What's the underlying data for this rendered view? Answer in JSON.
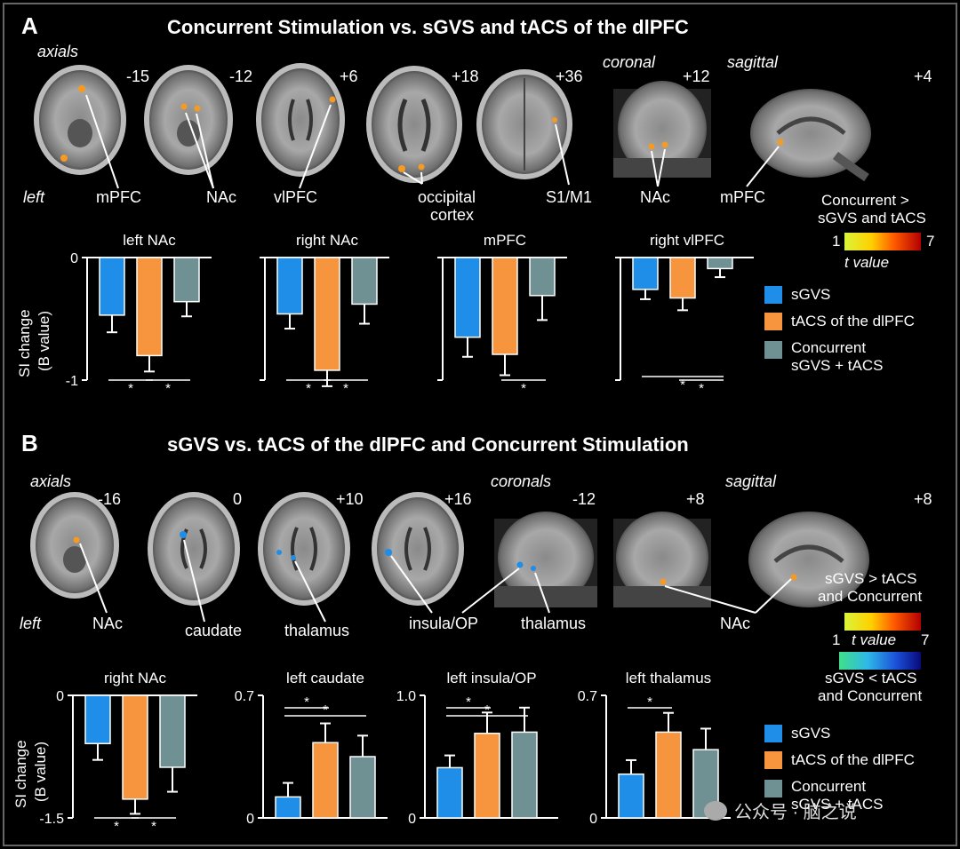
{
  "panel_a": {
    "letter": "A",
    "title": "Concurrent Stimulation vs. sGVS and tACS of the dlPFC",
    "view_labels": {
      "axials": "axials",
      "coronal": "coronal",
      "sagittal": "sagittal",
      "left": "left"
    },
    "slice_numbers": [
      "-15",
      "-12",
      "+6",
      "+18",
      "+36",
      "+12",
      "+4"
    ],
    "regions": {
      "mpfc_1": "mPFC",
      "nac_1": "NAc",
      "vlpfc": "vlPFC",
      "occipital": "occipital",
      "cortex": "cortex",
      "s1m1": "S1/M1",
      "nac_2": "NAc",
      "mpfc_2": "mPFC"
    },
    "colorbar": {
      "title_1": "Concurrent >",
      "title_2": "sGVS and tACS",
      "min": "1",
      "max": "7",
      "label": "t value"
    }
  },
  "panel_b": {
    "letter": "B",
    "title": "sGVS vs. tACS of the dlPFC and Concurrent Stimulation",
    "view_labels": {
      "axials": "axials",
      "coronals": "coronals",
      "sagittal": "sagittal",
      "left": "left"
    },
    "slice_numbers": [
      "-16",
      "0",
      "+10",
      "+16",
      "-12",
      "+8",
      "+8"
    ],
    "regions": {
      "nac_1": "NAc",
      "caudate": "caudate",
      "thalamus_1": "thalamus",
      "insula": "insula/OP",
      "thalamus_2": "thalamus",
      "nac_2": "NAc"
    },
    "colorbar": {
      "pos_1": "sGVS > tACS",
      "pos_2": "and Concurrent",
      "min": "1",
      "max": "7",
      "label": "t value",
      "neg_1": "sGVS < tACS",
      "neg_2": "and Concurrent"
    }
  },
  "legend": {
    "sgvs": "sGVS",
    "tacs": "tACS of the dlPFC",
    "conc_1": "Concurrent",
    "conc_2": "sGVS + tACS"
  },
  "legend_b": {
    "sgvs": "sGVS",
    "tacs": "tACS of the dlPFC",
    "conc_1": "Concurrent",
    "conc_2": "sGVS + tACS"
  },
  "ylabel_1": "SI change",
  "ylabel_2": "(B value)",
  "watermark": "公众号 · 脑之说",
  "colors": {
    "sgvs": "#1f8ee8",
    "tacs": "#f7953f",
    "concurrent": "#6f9193",
    "background": "#000000",
    "text": "#ffffff"
  },
  "chart_data": [
    {
      "type": "bar",
      "title": "left NAc",
      "categories": [
        "sGVS",
        "tACS of the dlPFC",
        "Concurrent sGVS + tACS"
      ],
      "values": [
        -0.47,
        -0.8,
        -0.36
      ],
      "errors": [
        0.14,
        0.13,
        0.12
      ],
      "ylim": [
        -1,
        0
      ],
      "yticks": [
        "0",
        "-1"
      ],
      "sig": [
        {
          "from": 1,
          "to": 0,
          "label": "*"
        },
        {
          "from": 1,
          "to": 2,
          "label": "*"
        }
      ]
    },
    {
      "type": "bar",
      "title": "right NAc",
      "categories": [
        "sGVS",
        "tACS of the dlPFC",
        "Concurrent sGVS + tACS"
      ],
      "values": [
        -0.46,
        -0.92,
        -0.38
      ],
      "errors": [
        0.12,
        0.13,
        0.16
      ],
      "ylim": [
        -1,
        0
      ],
      "yticks": [],
      "sig": [
        {
          "from": 1,
          "to": 0,
          "label": "*"
        },
        {
          "from": 1,
          "to": 2,
          "label": "*"
        }
      ]
    },
    {
      "type": "bar",
      "title": "mPFC",
      "categories": [
        "sGVS",
        "tACS of the dlPFC",
        "Concurrent sGVS + tACS"
      ],
      "values": [
        -0.65,
        -0.79,
        -0.31
      ],
      "errors": [
        0.16,
        0.17,
        0.2
      ],
      "ylim": [
        -1,
        0
      ],
      "yticks": [],
      "sig": [
        {
          "from": 1,
          "to": 2,
          "label": "*"
        }
      ]
    },
    {
      "type": "bar",
      "title": "right vlPFC",
      "categories": [
        "sGVS",
        "tACS of the dlPFC",
        "Concurrent sGVS + tACS"
      ],
      "values": [
        -0.26,
        -0.33,
        -0.09
      ],
      "errors": [
        0.08,
        0.1,
        0.07
      ],
      "ylim": [
        -1,
        0
      ],
      "yticks": [],
      "sig": [
        {
          "from": 0,
          "to": 2,
          "label": "*"
        },
        {
          "from": 1,
          "to": 2,
          "label": "*"
        }
      ]
    },
    {
      "type": "bar",
      "title": "right NAc",
      "categories": [
        "sGVS",
        "tACS of the dlPFC",
        "Concurrent sGVS + tACS"
      ],
      "values": [
        -0.59,
        -1.27,
        -0.88
      ],
      "errors": [
        0.2,
        0.18,
        0.3
      ],
      "ylim": [
        -1.5,
        0
      ],
      "yticks": [
        "0",
        "-1.5"
      ],
      "sig": [
        {
          "from": 1,
          "to": 0,
          "label": "*"
        },
        {
          "from": 1,
          "to": 2,
          "label": "*"
        }
      ]
    },
    {
      "type": "bar",
      "title": "left caudate",
      "categories": [
        "sGVS",
        "tACS of the dlPFC",
        "Concurrent sGVS + tACS"
      ],
      "values": [
        0.12,
        0.43,
        0.35
      ],
      "errors": [
        0.08,
        0.11,
        0.12
      ],
      "ylim": [
        0,
        0.7
      ],
      "yticks": [
        "0",
        "0.7"
      ],
      "sig": [
        {
          "from": 0,
          "to": 1,
          "label": "*"
        },
        {
          "from": 0,
          "to": 2,
          "label": "*"
        }
      ]
    },
    {
      "type": "bar",
      "title": "left insula/OP",
      "categories": [
        "sGVS",
        "tACS of the dlPFC",
        "Concurrent sGVS + tACS"
      ],
      "values": [
        0.41,
        0.69,
        0.7
      ],
      "errors": [
        0.1,
        0.17,
        0.2
      ],
      "ylim": [
        0,
        1.0
      ],
      "yticks": [
        "0",
        "1.0"
      ],
      "sig": [
        {
          "from": 0,
          "to": 1,
          "label": "*"
        },
        {
          "from": 0,
          "to": 2,
          "label": "*"
        }
      ]
    },
    {
      "type": "bar",
      "title": "left thalamus",
      "categories": [
        "sGVS",
        "tACS of the dlPFC",
        "Concurrent sGVS + tACS"
      ],
      "values": [
        0.25,
        0.49,
        0.39
      ],
      "errors": [
        0.08,
        0.11,
        0.12
      ],
      "ylim": [
        0,
        0.7
      ],
      "yticks": [
        "0",
        "0.7"
      ],
      "sig": [
        {
          "from": 0,
          "to": 1,
          "label": "*"
        }
      ]
    }
  ]
}
